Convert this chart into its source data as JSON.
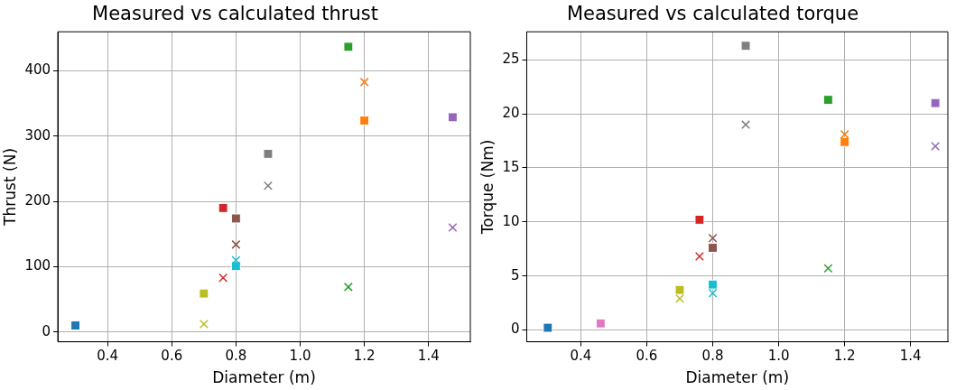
{
  "chart_data": [
    {
      "type": "scatter",
      "title": "Measured vs calculated thrust",
      "xlabel": "Diameter (m)",
      "ylabel": "Thrust (N)",
      "xlim": [
        0.245,
        1.53
      ],
      "ylim": [
        -15,
        460
      ],
      "xticks": [
        0.4,
        0.6,
        0.8,
        {
          "value": 1,
          "label": "1.0"
        },
        1.2,
        1.4
      ],
      "yticks": [
        0,
        100,
        200,
        300,
        400
      ],
      "grid": true,
      "legend": false,
      "series": [
        {
          "color": "#1f77b4",
          "marker": "square",
          "x": [
            0.3
          ],
          "values": [
            10
          ]
        },
        {
          "color": "#bcbd22",
          "marker": "square",
          "x": [
            0.7
          ],
          "values": [
            59
          ]
        },
        {
          "color": "#bcbd22",
          "marker": "cross",
          "x": [
            0.7
          ],
          "values": [
            12
          ]
        },
        {
          "color": "#d62728",
          "marker": "square",
          "x": [
            0.76
          ],
          "values": [
            190
          ]
        },
        {
          "color": "#d62728",
          "marker": "cross",
          "x": [
            0.76
          ],
          "values": [
            83
          ]
        },
        {
          "color": "#8c564b",
          "marker": "square",
          "x": [
            0.8
          ],
          "values": [
            174
          ]
        },
        {
          "color": "#8c564b",
          "marker": "cross",
          "x": [
            0.8
          ],
          "values": [
            134
          ]
        },
        {
          "color": "#17becf",
          "marker": "cross",
          "x": [
            0.8
          ],
          "values": [
            110
          ]
        },
        {
          "color": "#17becf",
          "marker": "square",
          "x": [
            0.8
          ],
          "values": [
            101
          ]
        },
        {
          "color": "#7f7f7f",
          "marker": "square",
          "x": [
            0.9
          ],
          "values": [
            273
          ]
        },
        {
          "color": "#7f7f7f",
          "marker": "cross",
          "x": [
            0.9
          ],
          "values": [
            224
          ]
        },
        {
          "color": "#2ca02c",
          "marker": "square",
          "x": [
            1.15
          ],
          "values": [
            437
          ]
        },
        {
          "color": "#2ca02c",
          "marker": "cross",
          "x": [
            1.15
          ],
          "values": [
            69
          ]
        },
        {
          "color": "#ff7f0e",
          "marker": "square",
          "x": [
            1.2
          ],
          "values": [
            324
          ]
        },
        {
          "color": "#ff7f0e",
          "marker": "cross",
          "x": [
            1.2
          ],
          "values": [
            383
          ]
        },
        {
          "color": "#9467bd",
          "marker": "square",
          "x": [
            1.475
          ],
          "values": [
            329
          ]
        },
        {
          "color": "#9467bd",
          "marker": "cross",
          "x": [
            1.475
          ],
          "values": [
            160
          ]
        }
      ]
    },
    {
      "type": "scatter",
      "title": "Measured vs calculated torque",
      "xlabel": "Diameter (m)",
      "ylabel": "Torque (Nm)",
      "xlim": [
        0.236,
        1.513
      ],
      "ylim": [
        -1.1,
        27.6
      ],
      "xticks": [
        0.4,
        0.6,
        0.8,
        {
          "value": 1,
          "label": "1.0"
        },
        1.2,
        1.4
      ],
      "yticks": [
        0,
        5,
        10,
        15,
        20,
        25
      ],
      "grid": true,
      "legend": false,
      "series": [
        {
          "color": "#1f77b4",
          "marker": "square",
          "x": [
            0.3
          ],
          "values": [
            0.2
          ]
        },
        {
          "color": "#e377c2",
          "marker": "square",
          "x": [
            0.46
          ],
          "values": [
            0.6
          ]
        },
        {
          "color": "#bcbd22",
          "marker": "cross",
          "x": [
            0.7
          ],
          "values": [
            2.9
          ]
        },
        {
          "color": "#bcbd22",
          "marker": "square",
          "x": [
            0.7
          ],
          "values": [
            3.7
          ]
        },
        {
          "color": "#d62728",
          "marker": "square",
          "x": [
            0.76
          ],
          "values": [
            10.2
          ]
        },
        {
          "color": "#d62728",
          "marker": "cross",
          "x": [
            0.76
          ],
          "values": [
            6.8
          ]
        },
        {
          "color": "#8c564b",
          "marker": "cross",
          "x": [
            0.8
          ],
          "values": [
            8.5
          ]
        },
        {
          "color": "#8c564b",
          "marker": "square",
          "x": [
            0.8
          ],
          "values": [
            7.6
          ]
        },
        {
          "color": "#17becf",
          "marker": "cross",
          "x": [
            0.8
          ],
          "values": [
            3.4
          ]
        },
        {
          "color": "#17becf",
          "marker": "square",
          "x": [
            0.8
          ],
          "values": [
            4.2
          ]
        },
        {
          "color": "#7f7f7f",
          "marker": "square",
          "x": [
            0.9
          ],
          "values": [
            26.3
          ]
        },
        {
          "color": "#7f7f7f",
          "marker": "cross",
          "x": [
            0.9
          ],
          "values": [
            19.0
          ]
        },
        {
          "color": "#2ca02c",
          "marker": "square",
          "x": [
            1.15
          ],
          "values": [
            21.3
          ]
        },
        {
          "color": "#2ca02c",
          "marker": "cross",
          "x": [
            1.15
          ],
          "values": [
            5.7
          ]
        },
        {
          "color": "#ff7f0e",
          "marker": "cross",
          "x": [
            1.2
          ],
          "values": [
            18.1
          ]
        },
        {
          "color": "#ff7f0e",
          "marker": "square",
          "x": [
            1.2
          ],
          "values": [
            17.4
          ]
        },
        {
          "color": "#9467bd",
          "marker": "square",
          "x": [
            1.475
          ],
          "values": [
            21.0
          ]
        },
        {
          "color": "#9467bd",
          "marker": "cross",
          "x": [
            1.475
          ],
          "values": [
            17.0
          ]
        }
      ]
    }
  ]
}
